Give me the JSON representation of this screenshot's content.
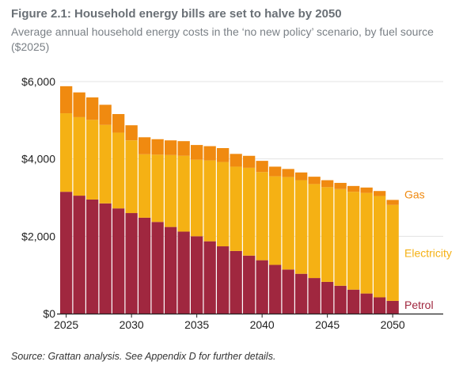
{
  "header": {
    "title": "Figure 2.1: Household energy bills are set to halve by 2050",
    "subtitle": "Average annual household energy costs in the ‘no new policy’ scenario, by fuel source ($2025)"
  },
  "footer": {
    "source": "Source: Grattan analysis. See Appendix D for further details."
  },
  "chart_data": {
    "type": "bar",
    "stacked": true,
    "categories": [
      "2025",
      "2026",
      "2027",
      "2028",
      "2029",
      "2030",
      "2031",
      "2032",
      "2033",
      "2034",
      "2035",
      "2036",
      "2037",
      "2038",
      "2039",
      "2040",
      "2041",
      "2042",
      "2043",
      "2044",
      "2045",
      "2046",
      "2047",
      "2048",
      "2049",
      "2050"
    ],
    "series": [
      {
        "name": "Petrol",
        "color": "#a0273f",
        "values": [
          3150,
          3050,
          2950,
          2850,
          2720,
          2600,
          2480,
          2370,
          2240,
          2120,
          2000,
          1870,
          1740,
          1620,
          1500,
          1380,
          1260,
          1140,
          1030,
          920,
          820,
          720,
          620,
          520,
          420,
          330
        ]
      },
      {
        "name": "Electricity",
        "color": "#f5b114",
        "values": [
          2030,
          2030,
          2060,
          2030,
          1960,
          1880,
          1640,
          1740,
          1860,
          1960,
          1980,
          2090,
          2180,
          2180,
          2270,
          2280,
          2290,
          2390,
          2420,
          2430,
          2450,
          2500,
          2530,
          2600,
          2620,
          2480
        ]
      },
      {
        "name": "Gas",
        "color": "#f08a10",
        "values": [
          700,
          640,
          580,
          520,
          480,
          390,
          440,
          400,
          380,
          380,
          380,
          370,
          360,
          330,
          310,
          290,
          250,
          210,
          200,
          190,
          180,
          160,
          150,
          140,
          130,
          130
        ]
      }
    ],
    "xticks": [
      "2025",
      "2030",
      "2035",
      "2040",
      "2045",
      "2050"
    ],
    "yticks": [
      "$0",
      "$2,000",
      "$4,000",
      "$6,000"
    ],
    "ylim": [
      0,
      6000
    ],
    "legend": "right, inline labels"
  }
}
